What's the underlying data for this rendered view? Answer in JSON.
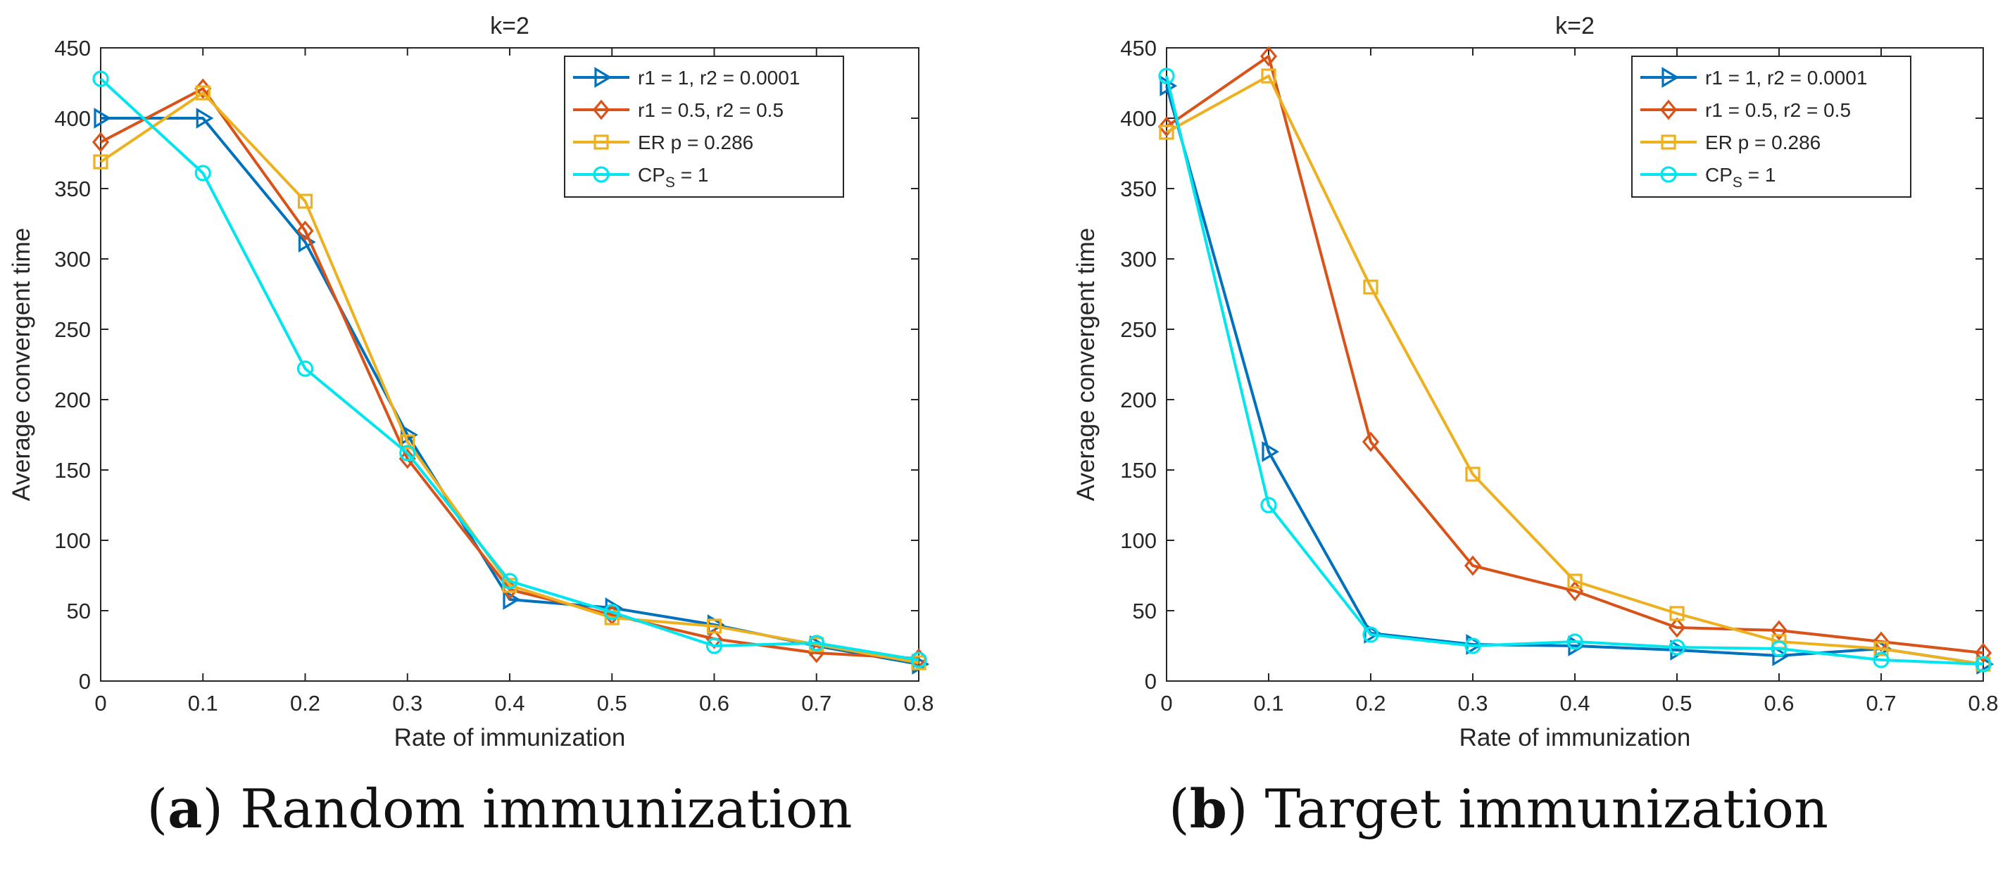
{
  "figure": {
    "panels": [
      {
        "caption_letter": "a",
        "caption_text": "Random immunization",
        "title": "k=2",
        "xlabel": "Rate of immunization",
        "ylabel": "Average convergent time"
      },
      {
        "caption_letter": "b",
        "caption_text": "Target immunization",
        "title": "k=2",
        "xlabel": "Rate of immunization",
        "ylabel": "Average convergent time"
      }
    ]
  },
  "chart_data": [
    {
      "type": "line",
      "title": "k=2",
      "xlabel": "Rate of immunization",
      "ylabel": "Average convergent time",
      "xlim": [
        0,
        0.8
      ],
      "ylim": [
        0,
        450
      ],
      "xticks": [
        "0",
        "0.1",
        "0.2",
        "0.3",
        "0.4",
        "0.5",
        "0.6",
        "0.7",
        "0.8"
      ],
      "yticks": [
        "0",
        "50",
        "100",
        "150",
        "200",
        "250",
        "300",
        "350",
        "400",
        "450"
      ],
      "grid": false,
      "legend_position": "top-right",
      "x": [
        0,
        0.1,
        0.2,
        0.3,
        0.4,
        0.5,
        0.6,
        0.7,
        0.8
      ],
      "series": [
        {
          "name": "r1 = 1, r2 = 0.0001",
          "color": "#0072BD",
          "marker": "triangle-right",
          "values": [
            400,
            400,
            312,
            175,
            58,
            52,
            40,
            25,
            12
          ]
        },
        {
          "name": "r1 = 0.5, r2 = 0.5",
          "color": "#D95319",
          "marker": "diamond",
          "values": [
            383,
            421,
            320,
            158,
            65,
            47,
            30,
            20,
            16
          ]
        },
        {
          "name": "ER p = 0.286",
          "color": "#EDB120",
          "marker": "square",
          "values": [
            369,
            418,
            341,
            170,
            68,
            45,
            39,
            26,
            13
          ]
        },
        {
          "name": "CP",
          "name_sub": "S",
          "name_suffix": " = 1",
          "color": "#00E5EE",
          "marker": "circle",
          "values": [
            428,
            361,
            222,
            162,
            71,
            49,
            25,
            27,
            15
          ]
        }
      ]
    },
    {
      "type": "line",
      "title": "k=2",
      "xlabel": "Rate of immunization",
      "ylabel": "Average convergent time",
      "xlim": [
        0,
        0.8
      ],
      "ylim": [
        0,
        450
      ],
      "xticks": [
        "0",
        "0.1",
        "0.2",
        "0.3",
        "0.4",
        "0.5",
        "0.6",
        "0.7",
        "0.8"
      ],
      "yticks": [
        "0",
        "50",
        "100",
        "150",
        "200",
        "250",
        "300",
        "350",
        "400",
        "450"
      ],
      "grid": false,
      "legend_position": "top-right",
      "x": [
        0,
        0.1,
        0.2,
        0.3,
        0.4,
        0.5,
        0.6,
        0.7,
        0.8
      ],
      "series": [
        {
          "name": "r1 = 1, r2 = 0.0001",
          "color": "#0072BD",
          "marker": "triangle-right",
          "values": [
            423,
            163,
            34,
            26,
            25,
            22,
            18,
            23,
            12
          ]
        },
        {
          "name": "r1 = 0.5, r2 = 0.5",
          "color": "#D95319",
          "marker": "diamond",
          "values": [
            394,
            444,
            170,
            82,
            64,
            38,
            36,
            28,
            20
          ]
        },
        {
          "name": "ER p = 0.286",
          "color": "#EDB120",
          "marker": "square",
          "values": [
            390,
            430,
            280,
            147,
            71,
            48,
            28,
            23,
            12
          ]
        },
        {
          "name": "CP",
          "name_sub": "S",
          "name_suffix": " = 1",
          "color": "#00E5EE",
          "marker": "circle",
          "values": [
            430,
            125,
            33,
            25,
            28,
            24,
            23,
            15,
            12
          ]
        }
      ]
    }
  ]
}
